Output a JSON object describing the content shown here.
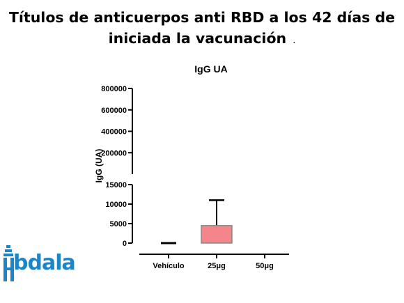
{
  "slide": {
    "title_line1": "Títulos de anticuerpos anti RBD a los 42 días de",
    "title_line2": "iniciada la vacunación",
    "title_suffix": "."
  },
  "logo": {
    "text": "bdala",
    "letter": "A",
    "color": "#1a86c9"
  },
  "chart_data": {
    "type": "bar",
    "title": "IgG UA",
    "xlabel": "",
    "ylabel": "IgG (UA)",
    "categories": [
      "Vehículo",
      "25μg",
      "50μg"
    ],
    "values": [
      0,
      4500,
      0
    ],
    "error_upper": [
      0,
      11000,
      0
    ],
    "bar_colors": [
      "#000000",
      "#f4868b",
      "#000000"
    ],
    "broken_axis": true,
    "upper_segment": {
      "ylim": [
        0,
        800000
      ],
      "ticks": [
        200000,
        400000,
        600000,
        800000
      ],
      "tick_labels": [
        "200000",
        "400000",
        "600000",
        "800000"
      ]
    },
    "lower_segment": {
      "ylim": [
        0,
        15000
      ],
      "ticks": [
        0,
        5000,
        10000,
        15000
      ],
      "tick_labels": [
        "0",
        "5000",
        "10000",
        "15000"
      ]
    },
    "grid": false,
    "legend": "none"
  }
}
